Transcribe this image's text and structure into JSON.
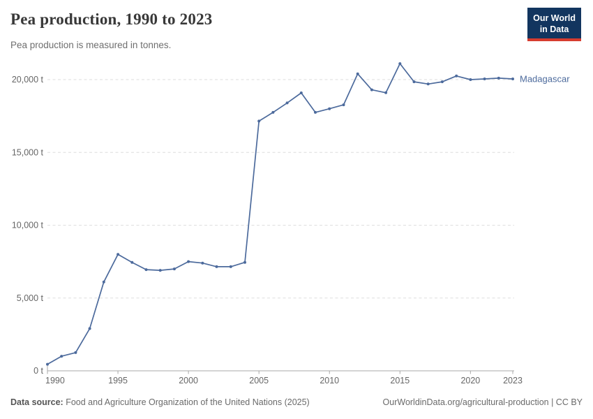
{
  "header": {
    "title": "Pea production, 1990 to 2023",
    "subtitle": "Pea production is measured in tonnes."
  },
  "logo": {
    "line1": "Our World",
    "line2": "in Data",
    "bg_color": "#12355f",
    "underline_color": "#d63c2f"
  },
  "footer": {
    "datasource_label": "Data source:",
    "datasource_value": " Food and Agriculture Organization of the United Nations (2025)",
    "attribution": "OurWorldinData.org/agricultural-production | CC BY"
  },
  "colors": {
    "accent_line": "#4c6a9c",
    "grid": "#dedede",
    "axis": "#a8a8a8",
    "tick_text": "#666666",
    "title_text": "#383838",
    "subtitle_text": "#6e6e6e"
  },
  "chart_data": {
    "type": "line",
    "title": "Pea production, 1990 to 2023",
    "unit": "tonnes",
    "xlabel": "",
    "ylabel": "",
    "ylim": [
      0,
      21500
    ],
    "grid": "horizontal-dashed",
    "legend_position": "end-of-line-label",
    "x": [
      1990,
      1991,
      1992,
      1993,
      1994,
      1995,
      1996,
      1997,
      1998,
      1999,
      2000,
      2001,
      2002,
      2003,
      2004,
      2005,
      2006,
      2007,
      2008,
      2009,
      2010,
      2011,
      2012,
      2013,
      2014,
      2015,
      2016,
      2017,
      2018,
      2019,
      2020,
      2021,
      2022,
      2023
    ],
    "series": [
      {
        "name": "Madagascar",
        "color": "#4c6a9c",
        "values": [
          450,
          1000,
          1250,
          2900,
          6100,
          8000,
          7450,
          6950,
          6900,
          7000,
          7500,
          7400,
          7150,
          7150,
          7450,
          17150,
          17750,
          18400,
          19090,
          17750,
          18000,
          18270,
          20400,
          19300,
          19100,
          21100,
          19850,
          19700,
          19850,
          20250,
          20000,
          20050,
          20100,
          20050
        ]
      }
    ],
    "yticks": [
      0,
      5000,
      10000,
      15000,
      20000
    ],
    "ytick_labels": [
      "0 t",
      "5,000 t",
      "10,000 t",
      "15,000 t",
      "20,000 t"
    ],
    "xticks": [
      1990,
      1995,
      2000,
      2005,
      2010,
      2015,
      2020,
      2023
    ]
  }
}
